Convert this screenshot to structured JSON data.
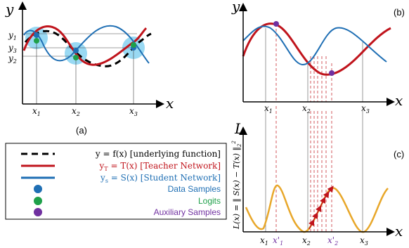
{
  "panel_a": {
    "axis_y": "y",
    "axis_x": "x",
    "y_ticks": [
      "y",
      "y",
      "y"
    ],
    "y_subs": [
      "1",
      "3",
      "2"
    ],
    "x_ticks": [
      "x",
      "x",
      "x"
    ],
    "x_subs": [
      "1",
      "2",
      "3"
    ],
    "caption": "(a)"
  },
  "panel_b": {
    "axis_y": "y",
    "axis_x": "x",
    "caption": "(b)",
    "x_ticks": [
      "x",
      "x",
      "x"
    ],
    "x_subs": [
      "1",
      "2",
      "3"
    ]
  },
  "panel_c": {
    "axis_y": "L",
    "axis_x": "x",
    "caption": "(c)",
    "ylabel": "L(x) = ‖ S(x) − T(x) ‖",
    "ylabel_sub": "2",
    "ylabel_sup": "2",
    "x_ticks": [
      "x",
      "x'",
      "x",
      "x'",
      "x"
    ],
    "x_subs": [
      "1",
      "1",
      "2",
      "2",
      "3"
    ]
  },
  "legend": {
    "items": [
      {
        "text": "y = f(x) [underlying function]",
        "color": "#000000"
      },
      {
        "text": "y",
        "sub": "T",
        "rest": " = T(x) [Teacher Network]",
        "color": "#c0141c"
      },
      {
        "text": "y",
        "sub": "s",
        "rest": " = S(x) [Student Network]",
        "color": "#1f6fb4"
      },
      {
        "text": "Data Samples",
        "color": "#1f6fb4"
      },
      {
        "text": "Logits",
        "color": "#1fa04a"
      },
      {
        "text": "Auxiliary Samples",
        "color": "#7030a0"
      }
    ]
  },
  "colors": {
    "teacher": "#c0141c",
    "student": "#1f6fb4",
    "underlying": "#000000",
    "data": "#1f6fb4",
    "logits": "#1fa04a",
    "aux": "#7030a0",
    "loss": "#e8a72a",
    "halo": "#7fd0f0"
  }
}
